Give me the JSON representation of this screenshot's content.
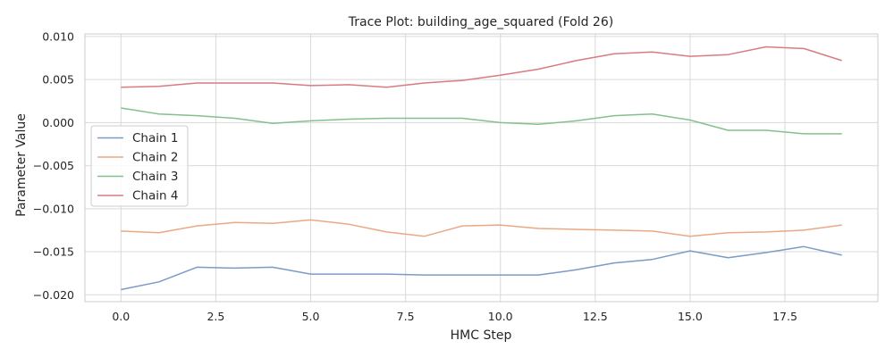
{
  "chart_data": {
    "type": "line",
    "title": "Trace Plot: building_age_squared (Fold 26)",
    "xlabel": "HMC Step",
    "ylabel": "Parameter Value",
    "xlim": [
      -0.95,
      19.95
    ],
    "ylim": [
      -0.0208,
      0.0103
    ],
    "x_ticks": [
      0.0,
      2.5,
      5.0,
      7.5,
      10.0,
      12.5,
      15.0,
      17.5
    ],
    "x_tick_labels": [
      "0.0",
      "2.5",
      "5.0",
      "7.5",
      "10.0",
      "12.5",
      "15.0",
      "17.5"
    ],
    "y_ticks": [
      0.01,
      0.005,
      0.0,
      -0.005,
      -0.01,
      -0.015,
      -0.02
    ],
    "y_tick_labels": [
      "0.010",
      "0.005",
      "0.000",
      "−0.005",
      "−0.010",
      "−0.015",
      "−0.020"
    ],
    "grid": true,
    "legend_position": "center-left",
    "x": [
      0,
      1,
      2,
      3,
      4,
      5,
      6,
      7,
      8,
      9,
      10,
      11,
      12,
      13,
      14,
      15,
      16,
      17,
      18,
      19
    ],
    "series": [
      {
        "name": "Chain 1",
        "color": "#7a9bc6",
        "values": [
          -0.0194,
          -0.0185,
          -0.0168,
          -0.0169,
          -0.0168,
          -0.0176,
          -0.0176,
          -0.0176,
          -0.0177,
          -0.0177,
          -0.0177,
          -0.0177,
          -0.0171,
          -0.0163,
          -0.0159,
          -0.0149,
          -0.0157,
          -0.0151,
          -0.0144,
          -0.0154
        ]
      },
      {
        "name": "Chain 2",
        "color": "#eaa883",
        "values": [
          -0.0126,
          -0.0128,
          -0.012,
          -0.0116,
          -0.0117,
          -0.0113,
          -0.0118,
          -0.0127,
          -0.0132,
          -0.012,
          -0.0119,
          -0.0123,
          -0.0124,
          -0.0125,
          -0.0126,
          -0.0132,
          -0.0128,
          -0.0127,
          -0.0125,
          -0.0119
        ]
      },
      {
        "name": "Chain 3",
        "color": "#84c08f",
        "values": [
          0.0017,
          0.001,
          0.0008,
          0.0005,
          -0.0001,
          0.0002,
          0.0004,
          0.0005,
          0.0005,
          0.0005,
          0.0,
          -0.0002,
          0.0002,
          0.0008,
          0.001,
          0.0003,
          -0.0009,
          -0.0009,
          -0.0013,
          -0.0013
        ]
      },
      {
        "name": "Chain 4",
        "color": "#d97b80",
        "values": [
          0.0041,
          0.0042,
          0.0046,
          0.0046,
          0.0046,
          0.0043,
          0.0044,
          0.0041,
          0.0046,
          0.0049,
          0.0055,
          0.0062,
          0.0072,
          0.008,
          0.0082,
          0.0077,
          0.0079,
          0.0088,
          0.0086,
          0.0072
        ]
      }
    ]
  }
}
